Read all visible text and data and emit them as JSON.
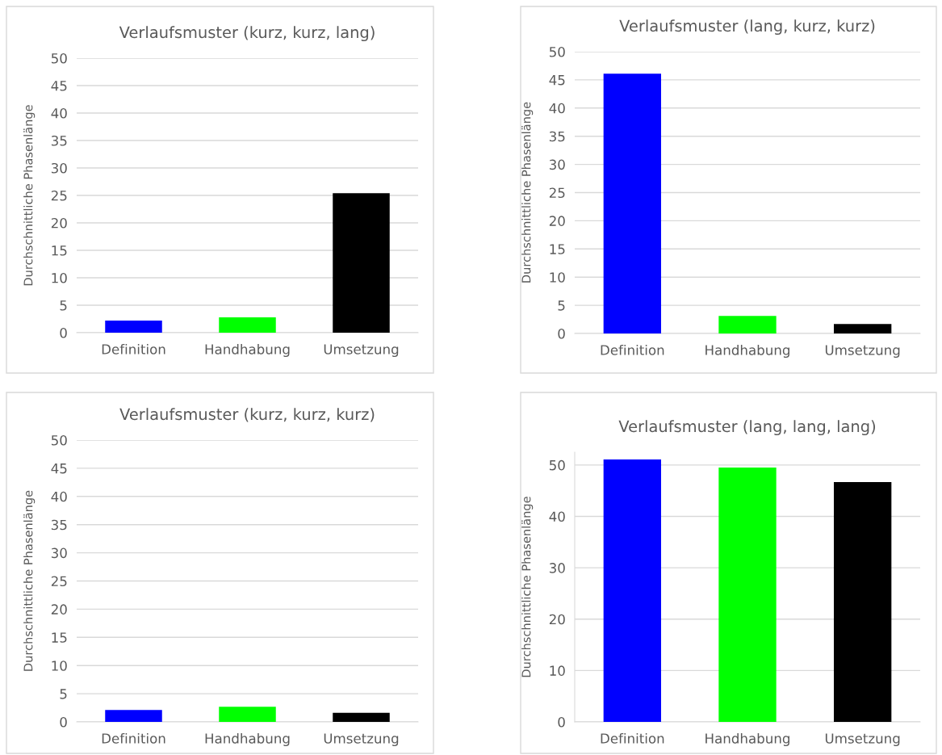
{
  "chart_data": [
    {
      "type": "bar",
      "title": "Verlaufsmuster (kurz, kurz, lang)",
      "ylabel": "Durchschnittliche Phasenlänge",
      "categories": [
        "Definition",
        "Handhabung",
        "Umsetzung"
      ],
      "values": [
        2.2,
        2.8,
        25.4
      ],
      "colors": [
        "#0000ff",
        "#00ff00",
        "#000000"
      ],
      "ylim": [
        0,
        50
      ],
      "yticks": [
        0,
        5,
        10,
        15,
        20,
        25,
        30,
        35,
        40,
        45,
        50
      ],
      "grid": "y"
    },
    {
      "type": "bar",
      "title": "Verlaufsmuster (lang, kurz, kurz)",
      "ylabel": "Durchschnittliche Phasenlänge",
      "categories": [
        "Definition",
        "Handhabung",
        "Umsetzung"
      ],
      "values": [
        46.1,
        3.1,
        1.7
      ],
      "colors": [
        "#0000ff",
        "#00ff00",
        "#000000"
      ],
      "ylim": [
        0,
        50
      ],
      "yticks": [
        0,
        5,
        10,
        15,
        20,
        25,
        30,
        35,
        40,
        45,
        50
      ],
      "grid": "y"
    },
    {
      "type": "bar",
      "title": "Verlaufsmuster (kurz, kurz, kurz)",
      "ylabel": "Durchschnittliche Phasenlänge",
      "categories": [
        "Definition",
        "Handhabung",
        "Umsetzung"
      ],
      "values": [
        2.1,
        2.7,
        1.6
      ],
      "colors": [
        "#0000ff",
        "#00ff00",
        "#000000"
      ],
      "ylim": [
        0,
        50
      ],
      "yticks": [
        0,
        5,
        10,
        15,
        20,
        25,
        30,
        35,
        40,
        45,
        50
      ],
      "grid": "y"
    },
    {
      "type": "bar",
      "title": "Verlaufsmuster (lang, lang, lang)",
      "ylabel": "Durchschnittliche Phasenlänge",
      "categories": [
        "Definition",
        "Handhabung",
        "Umsetzung"
      ],
      "values": [
        51.1,
        49.5,
        46.7
      ],
      "colors": [
        "#0000ff",
        "#00ff00",
        "#000000"
      ],
      "ylim": [
        0,
        52.5
      ],
      "yticks": [
        0,
        10,
        20,
        30,
        40,
        50
      ],
      "grid": "y"
    }
  ]
}
